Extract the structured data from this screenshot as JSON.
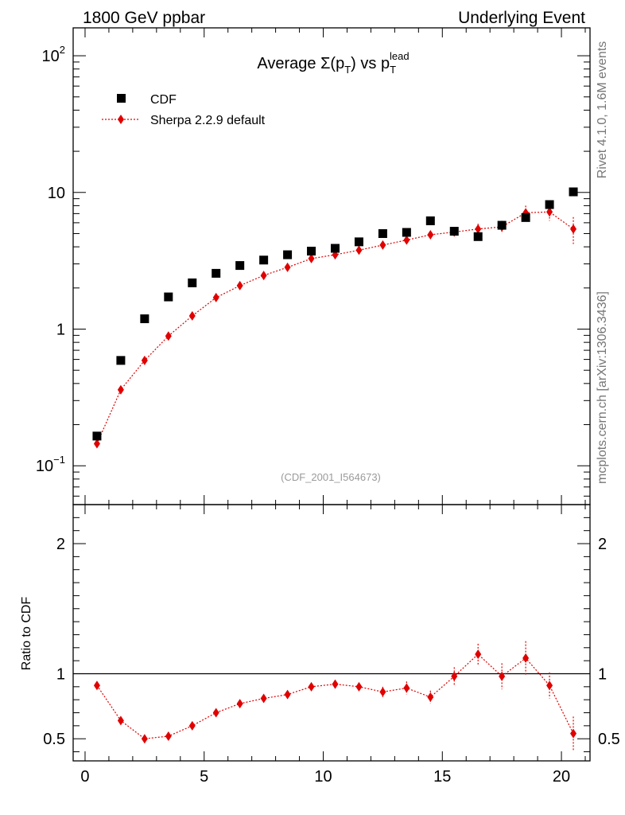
{
  "header": {
    "left": "1800 GeV ppbar",
    "right": "Underlying Event"
  },
  "side_labels": {
    "upper": "Rivet 4.1.0,  1.6M events",
    "lower": "mcplots.cern.ch [arXiv:1306.3436]"
  },
  "chart_data": [
    {
      "type": "scatter",
      "title": "Average Σ(p_T) vs p_T^lead",
      "title_parts": {
        "pre": "Average Σ(p",
        "sub1": "T",
        "mid": ") vs p",
        "sub2": "T",
        "sup": "lead"
      },
      "annotation": "(CDF_2001_I564673)",
      "yscale": "log",
      "xlim": [
        -0.5,
        21.2
      ],
      "ylim": [
        0.052,
        160
      ],
      "x_ticks": [
        0,
        5,
        10,
        15,
        20
      ],
      "x_tick_labels": [
        "0",
        "5",
        "10",
        "15",
        "20"
      ],
      "y_ticks": [
        0.1,
        1,
        10,
        100
      ],
      "y_tick_labels": [
        {
          "base": "10",
          "exp": "−1"
        },
        {
          "base": "1",
          "exp": ""
        },
        {
          "base": "10",
          "exp": ""
        },
        {
          "base": "10",
          "exp": "2"
        }
      ],
      "legend": {
        "position": "top-left",
        "entries": [
          "CDF",
          "Sherpa 2.2.9 default"
        ]
      },
      "series": [
        {
          "name": "CDF",
          "color": "#000000",
          "marker": "square",
          "x": [
            0.5,
            1.5,
            2.5,
            3.5,
            4.5,
            5.5,
            6.5,
            7.5,
            8.5,
            9.5,
            10.5,
            11.5,
            12.5,
            13.5,
            14.5,
            15.5,
            16.5,
            17.5,
            18.5,
            19.5,
            20.5
          ],
          "y": [
            0.165,
            0.59,
            1.19,
            1.72,
            2.18,
            2.56,
            2.92,
            3.2,
            3.5,
            3.72,
            3.9,
            4.35,
            5.0,
            5.1,
            6.2,
            5.2,
            4.75,
            5.75,
            6.55,
            8.15,
            10.1
          ]
        },
        {
          "name": "Sherpa 2.2.9 default",
          "color": "#e00000",
          "marker": "diamond",
          "line": "dotted",
          "x": [
            0.5,
            1.5,
            2.5,
            3.5,
            4.5,
            5.5,
            6.5,
            7.5,
            8.5,
            9.5,
            10.5,
            11.5,
            12.5,
            13.5,
            14.5,
            15.5,
            16.5,
            17.5,
            18.5,
            19.5,
            20.5
          ],
          "y": [
            0.145,
            0.36,
            0.59,
            0.89,
            1.25,
            1.7,
            2.08,
            2.47,
            2.83,
            3.28,
            3.5,
            3.78,
            4.12,
            4.48,
            4.9,
            5.13,
            5.4,
            5.6,
            7.1,
            7.2,
            5.4
          ],
          "yerr": [
            0.005,
            0.01,
            0.015,
            0.02,
            0.03,
            0.04,
            0.05,
            0.06,
            0.07,
            0.09,
            0.1,
            0.12,
            0.15,
            0.18,
            0.25,
            0.35,
            0.5,
            0.6,
            0.9,
            1.0,
            1.2
          ]
        }
      ]
    },
    {
      "type": "scatter",
      "ylabel": "Ratio to CDF",
      "xlim": [
        -0.5,
        21.2
      ],
      "ylim": [
        0.33,
        2.3
      ],
      "x_ticks": [
        0,
        5,
        10,
        15,
        20
      ],
      "x_tick_labels": [
        "0",
        "5",
        "10",
        "15",
        "20"
      ],
      "y_ticks": [
        0.5,
        1,
        2
      ],
      "y_tick_labels": [
        "0.5",
        "1",
        "2"
      ],
      "reference_line": 1,
      "series": [
        {
          "name": "Sherpa 2.2.9 default",
          "color": "#e00000",
          "marker": "diamond",
          "line": "dotted",
          "x": [
            0.5,
            1.5,
            2.5,
            3.5,
            4.5,
            5.5,
            6.5,
            7.5,
            8.5,
            9.5,
            10.5,
            11.5,
            12.5,
            13.5,
            14.5,
            15.5,
            16.5,
            17.5,
            18.5,
            19.5,
            20.5
          ],
          "y": [
            0.91,
            0.64,
            0.5,
            0.52,
            0.6,
            0.7,
            0.77,
            0.81,
            0.84,
            0.9,
            0.92,
            0.9,
            0.86,
            0.89,
            0.82,
            0.98,
            1.15,
            0.98,
            1.12,
            0.91,
            0.54
          ],
          "yerr": [
            0.005,
            0.005,
            0.005,
            0.005,
            0.01,
            0.01,
            0.01,
            0.015,
            0.02,
            0.02,
            0.03,
            0.03,
            0.04,
            0.05,
            0.05,
            0.07,
            0.08,
            0.1,
            0.13,
            0.1,
            0.13
          ]
        }
      ]
    }
  ]
}
